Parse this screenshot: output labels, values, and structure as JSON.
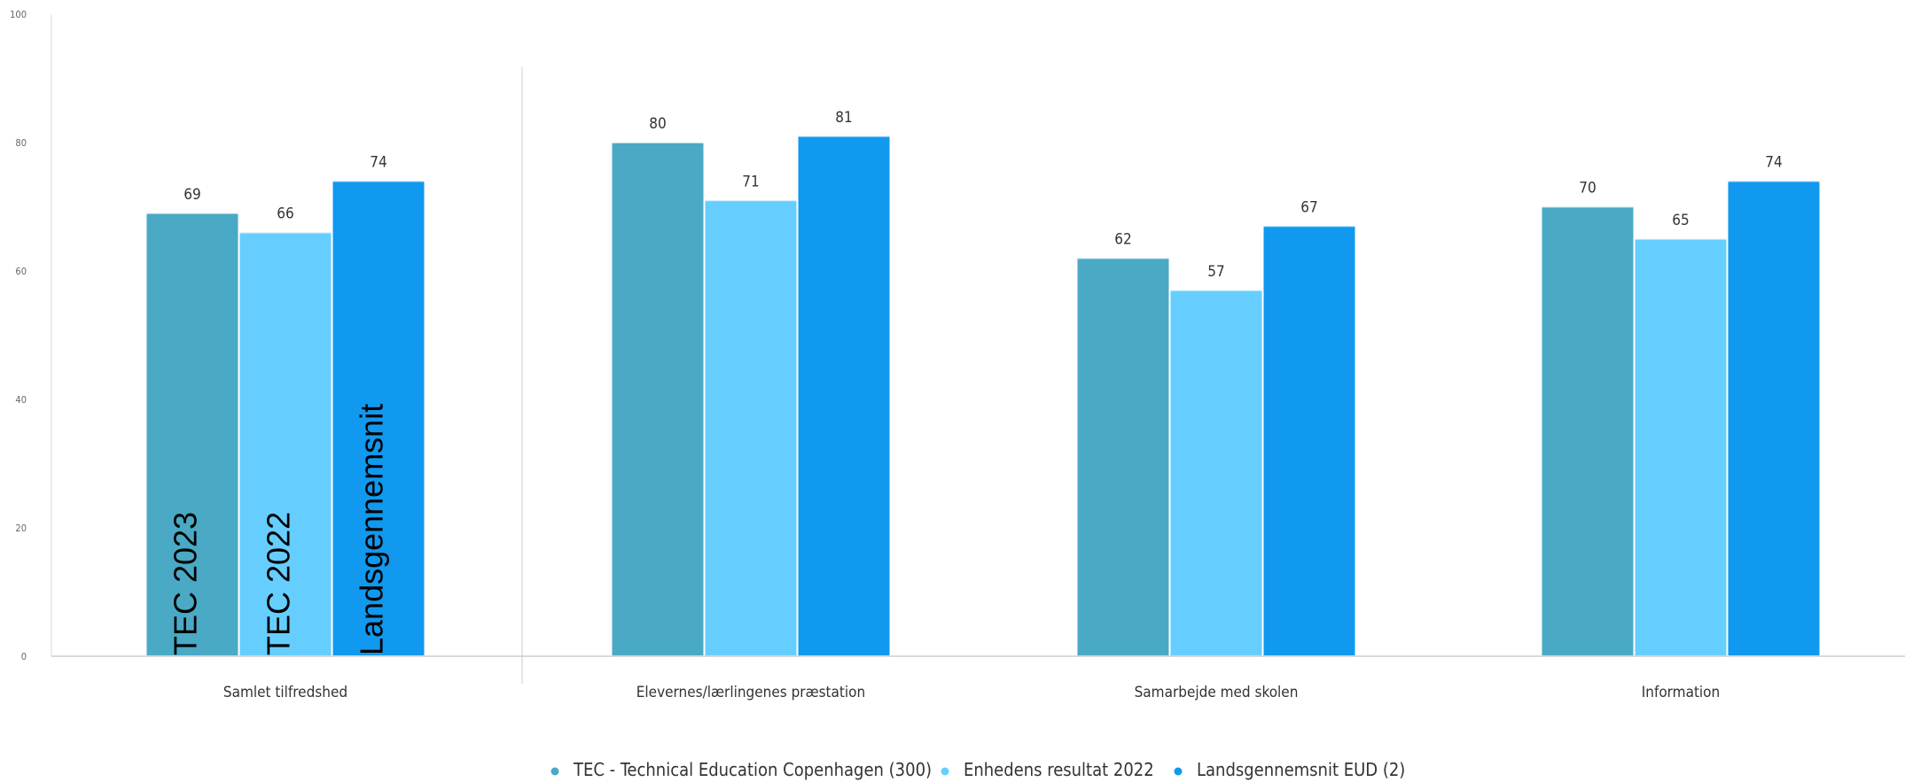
{
  "chart_data": {
    "type": "bar",
    "categories": [
      "Samlet tilfredshed",
      "Elevernes/lærlingenes præstation",
      "Samarbejde med skolen",
      "Information"
    ],
    "series": [
      {
        "name": "TEC - Technical Education Copenhagen (300)",
        "values": [
          69,
          80,
          62,
          70
        ],
        "color": "#4aa9c5"
      },
      {
        "name": "Enhedens resultat 2022",
        "values": [
          66,
          71,
          57,
          65
        ],
        "color": "#66ceff"
      },
      {
        "name": "Landsgennemsnit EUD (2)",
        "values": [
          74,
          81,
          67,
          74
        ],
        "color": "#1198ef"
      }
    ],
    "data_labels": [
      [
        "69",
        "80",
        "62",
        "70"
      ],
      [
        "66",
        "71",
        "57",
        "65"
      ],
      [
        "74",
        "81",
        "67",
        "74"
      ]
    ],
    "yticks": [
      "0",
      "20",
      "40",
      "60",
      "80",
      "100"
    ],
    "ylim": [
      0,
      100
    ],
    "overlay_labels": [
      "TEC  2023",
      "TEC 2022",
      "Landsgennemsnit"
    ],
    "legend_position": "bottom",
    "grid": false
  }
}
